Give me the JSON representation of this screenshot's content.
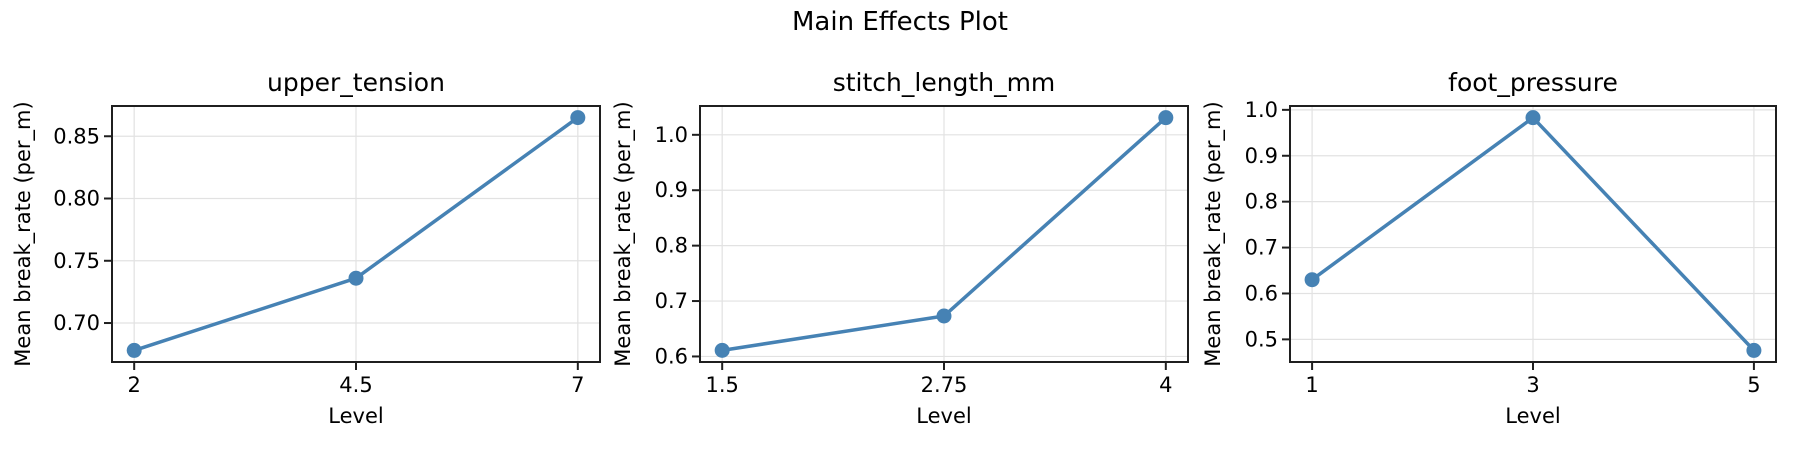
{
  "figure": {
    "title": "Main Effects Plot"
  },
  "colors": {
    "line": "#4682B4",
    "marker": "#4682B4",
    "grid": "#e2e2e2",
    "spine": "#1f1f1f",
    "tick": "#1f1f1f",
    "text": "#000000",
    "background": "#ffffff"
  },
  "chart_data": [
    {
      "type": "line",
      "title": "upper_tension",
      "xlabel": "Level",
      "ylabel": "Mean break_rate (per_m)",
      "x": [
        2,
        4.5,
        7
      ],
      "values": [
        0.678,
        0.736,
        0.865
      ],
      "xticks": [
        2,
        4.5,
        7
      ],
      "xtick_labels": [
        "2",
        "4.5",
        "7"
      ],
      "yticks": [
        0.7,
        0.75,
        0.8,
        0.85
      ],
      "ytick_labels": [
        "0.70",
        "0.75",
        "0.80",
        "0.85"
      ],
      "xlim": [
        1.75,
        7.25
      ],
      "ylim": [
        0.6687,
        0.8743
      ],
      "grid": true,
      "legend": null
    },
    {
      "type": "line",
      "title": "stitch_length_mm",
      "xlabel": "Level",
      "ylabel": "Mean break_rate (per_m)",
      "x": [
        1.5,
        2.75,
        4
      ],
      "values": [
        0.611,
        0.673,
        1.031
      ],
      "xticks": [
        1.5,
        2.75,
        4
      ],
      "xtick_labels": [
        "1.5",
        "2.75",
        "4"
      ],
      "yticks": [
        0.6,
        0.7,
        0.8,
        0.9,
        1.0
      ],
      "ytick_labels": [
        "0.6",
        "0.7",
        "0.8",
        "0.9",
        "1.0"
      ],
      "xlim": [
        1.375,
        4.125
      ],
      "ylim": [
        0.59,
        1.052
      ],
      "grid": true,
      "legend": null
    },
    {
      "type": "line",
      "title": "foot_pressure",
      "xlabel": "Level",
      "ylabel": "Mean break_rate (per_m)",
      "x": [
        1,
        3,
        5
      ],
      "values": [
        0.63,
        0.983,
        0.476
      ],
      "xticks": [
        1,
        3,
        5
      ],
      "xtick_labels": [
        "1",
        "3",
        "5"
      ],
      "yticks": [
        0.5,
        0.6,
        0.7,
        0.8,
        0.9,
        1.0
      ],
      "ytick_labels": [
        "0.5",
        "0.6",
        "0.7",
        "0.8",
        "0.9",
        "1.0"
      ],
      "xlim": [
        0.8,
        5.2
      ],
      "ylim": [
        0.4507,
        1.0084
      ],
      "grid": true,
      "legend": null
    }
  ]
}
